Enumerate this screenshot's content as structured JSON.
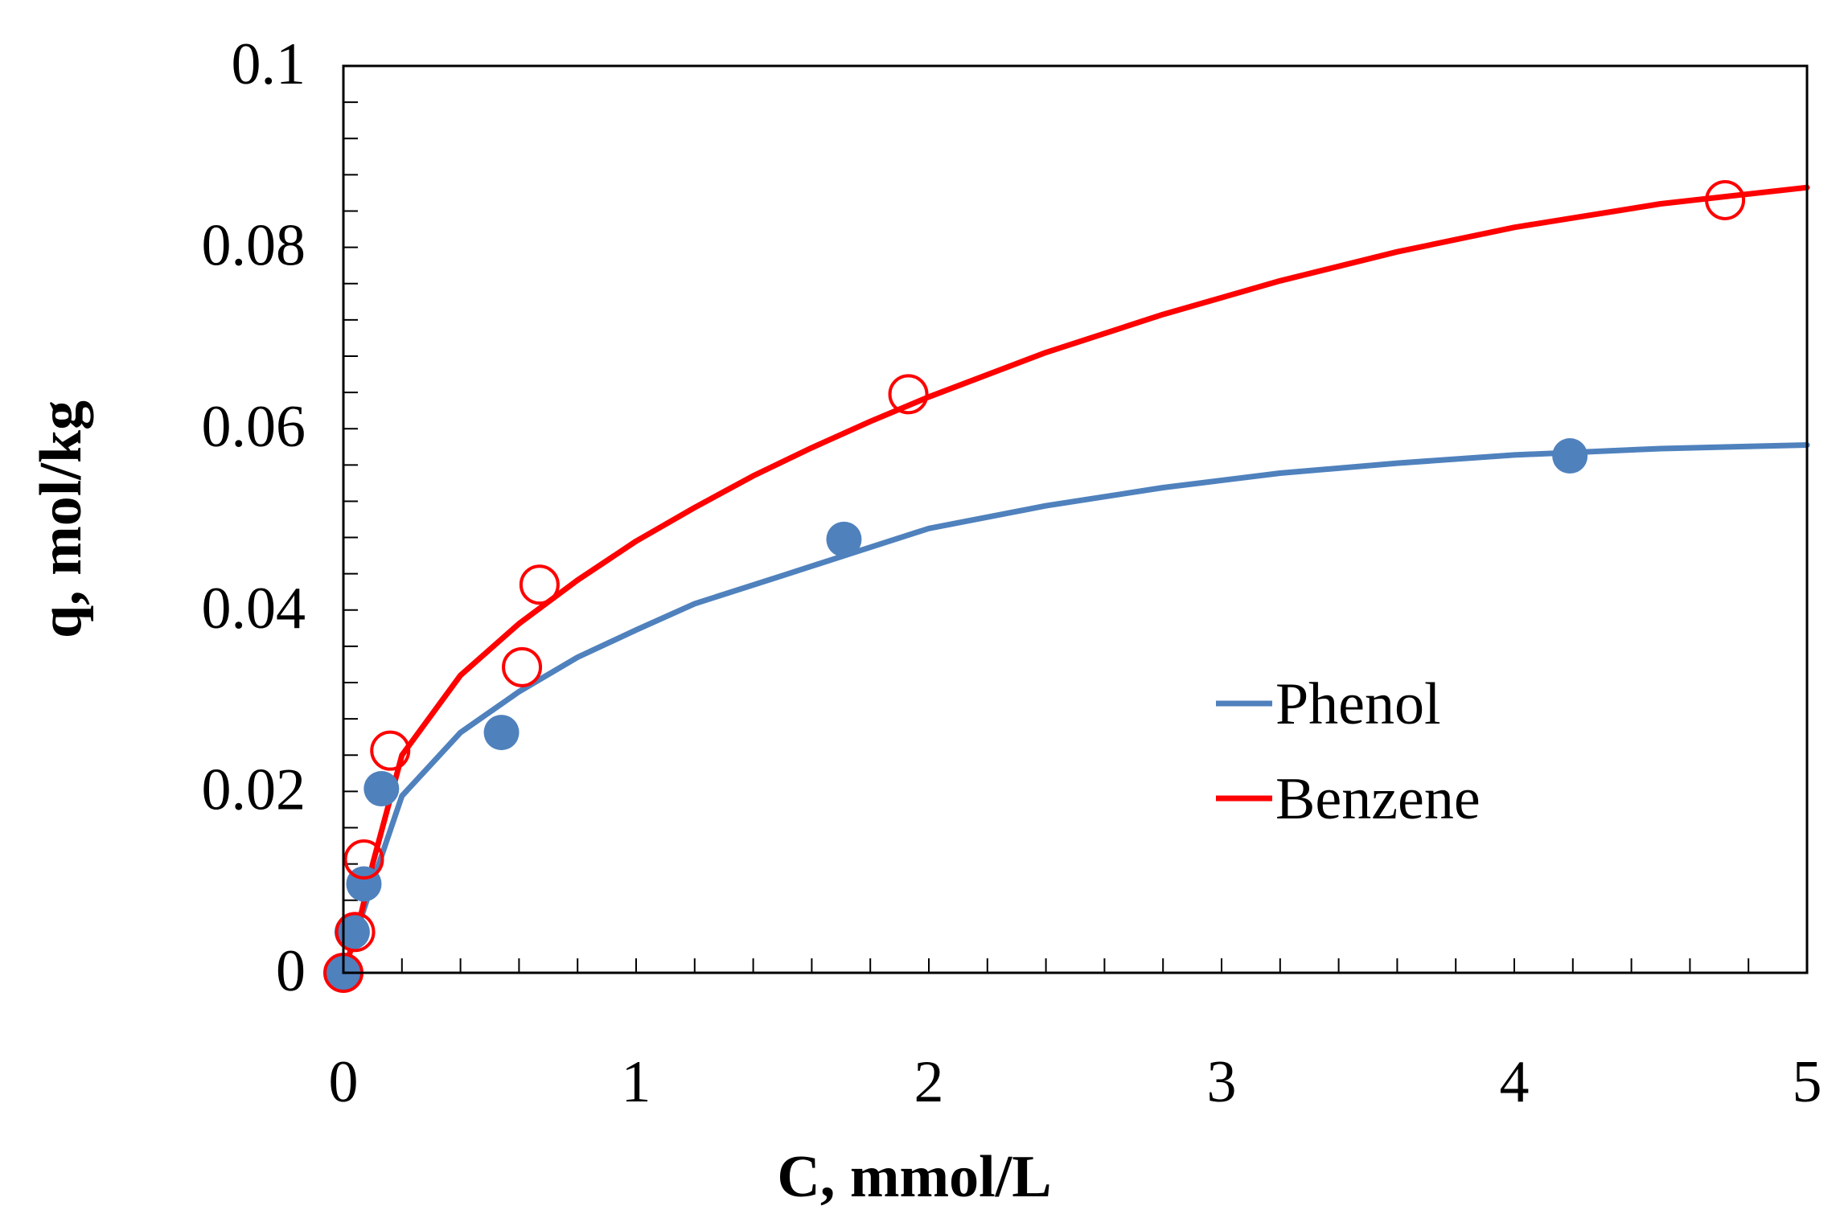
{
  "chart_data": {
    "type": "scatter",
    "title": "",
    "xlabel": "C, mmol/L",
    "ylabel": "q, mol/kg",
    "xlim": [
      0,
      5
    ],
    "ylim": [
      0,
      0.1
    ],
    "x_ticks": [
      "0",
      "1",
      "2",
      "3",
      "4",
      "5"
    ],
    "y_ticks": [
      "0",
      "0.02",
      "0.04",
      "0.06",
      "0.08",
      "0.1"
    ],
    "x_tick_values": [
      0,
      1,
      2,
      3,
      4,
      5
    ],
    "y_tick_values": [
      0,
      0.02,
      0.04,
      0.06,
      0.08,
      0.1
    ],
    "grid": false,
    "legend_position": "center-right",
    "series": [
      {
        "name": "Phenol",
        "color": "#4f81bd",
        "marker": "filled-circle",
        "points": [
          {
            "x": 0.0,
            "y": 0.0
          },
          {
            "x": 0.03,
            "y": 0.0045
          },
          {
            "x": 0.07,
            "y": 0.0098
          },
          {
            "x": 0.13,
            "y": 0.0203
          },
          {
            "x": 0.54,
            "y": 0.0265
          },
          {
            "x": 1.71,
            "y": 0.0478
          },
          {
            "x": 4.19,
            "y": 0.057
          }
        ],
        "fit": [
          {
            "x": 0,
            "y": 0
          },
          {
            "x": 0.05,
            "y": 0.005
          },
          {
            "x": 0.1,
            "y": 0.01
          },
          {
            "x": 0.2,
            "y": 0.0195
          },
          {
            "x": 0.4,
            "y": 0.0265
          },
          {
            "x": 0.6,
            "y": 0.031
          },
          {
            "x": 0.8,
            "y": 0.0348
          },
          {
            "x": 1.0,
            "y": 0.0378
          },
          {
            "x": 1.2,
            "y": 0.0407
          },
          {
            "x": 1.5,
            "y": 0.0438
          },
          {
            "x": 1.75,
            "y": 0.0464
          },
          {
            "x": 2.0,
            "y": 0.049
          },
          {
            "x": 2.4,
            "y": 0.0515
          },
          {
            "x": 2.8,
            "y": 0.0535
          },
          {
            "x": 3.2,
            "y": 0.0551
          },
          {
            "x": 3.6,
            "y": 0.0562
          },
          {
            "x": 4.0,
            "y": 0.0571
          },
          {
            "x": 4.5,
            "y": 0.0578
          },
          {
            "x": 5.0,
            "y": 0.0582
          }
        ]
      },
      {
        "name": "Benzene",
        "color": "#ff0000",
        "marker": "open-circle",
        "points": [
          {
            "x": 0.0,
            "y": 0.0
          },
          {
            "x": 0.04,
            "y": 0.0045
          },
          {
            "x": 0.07,
            "y": 0.0125
          },
          {
            "x": 0.16,
            "y": 0.0245
          },
          {
            "x": 0.61,
            "y": 0.0337
          },
          {
            "x": 0.67,
            "y": 0.0428
          },
          {
            "x": 1.93,
            "y": 0.0638
          },
          {
            "x": 4.72,
            "y": 0.0852
          }
        ],
        "fit": [
          {
            "x": 0,
            "y": 0
          },
          {
            "x": 0.05,
            "y": 0.005
          },
          {
            "x": 0.1,
            "y": 0.012
          },
          {
            "x": 0.2,
            "y": 0.024
          },
          {
            "x": 0.4,
            "y": 0.0328
          },
          {
            "x": 0.6,
            "y": 0.0385
          },
          {
            "x": 0.8,
            "y": 0.0433
          },
          {
            "x": 1.0,
            "y": 0.0476
          },
          {
            "x": 1.2,
            "y": 0.0513
          },
          {
            "x": 1.4,
            "y": 0.0548
          },
          {
            "x": 1.6,
            "y": 0.0579
          },
          {
            "x": 1.8,
            "y": 0.0608
          },
          {
            "x": 2.0,
            "y": 0.0635
          },
          {
            "x": 2.4,
            "y": 0.0684
          },
          {
            "x": 2.8,
            "y": 0.0726
          },
          {
            "x": 3.2,
            "y": 0.0763
          },
          {
            "x": 3.6,
            "y": 0.0795
          },
          {
            "x": 4.0,
            "y": 0.0822
          },
          {
            "x": 4.5,
            "y": 0.0848
          },
          {
            "x": 5.0,
            "y": 0.0866
          }
        ]
      }
    ]
  }
}
